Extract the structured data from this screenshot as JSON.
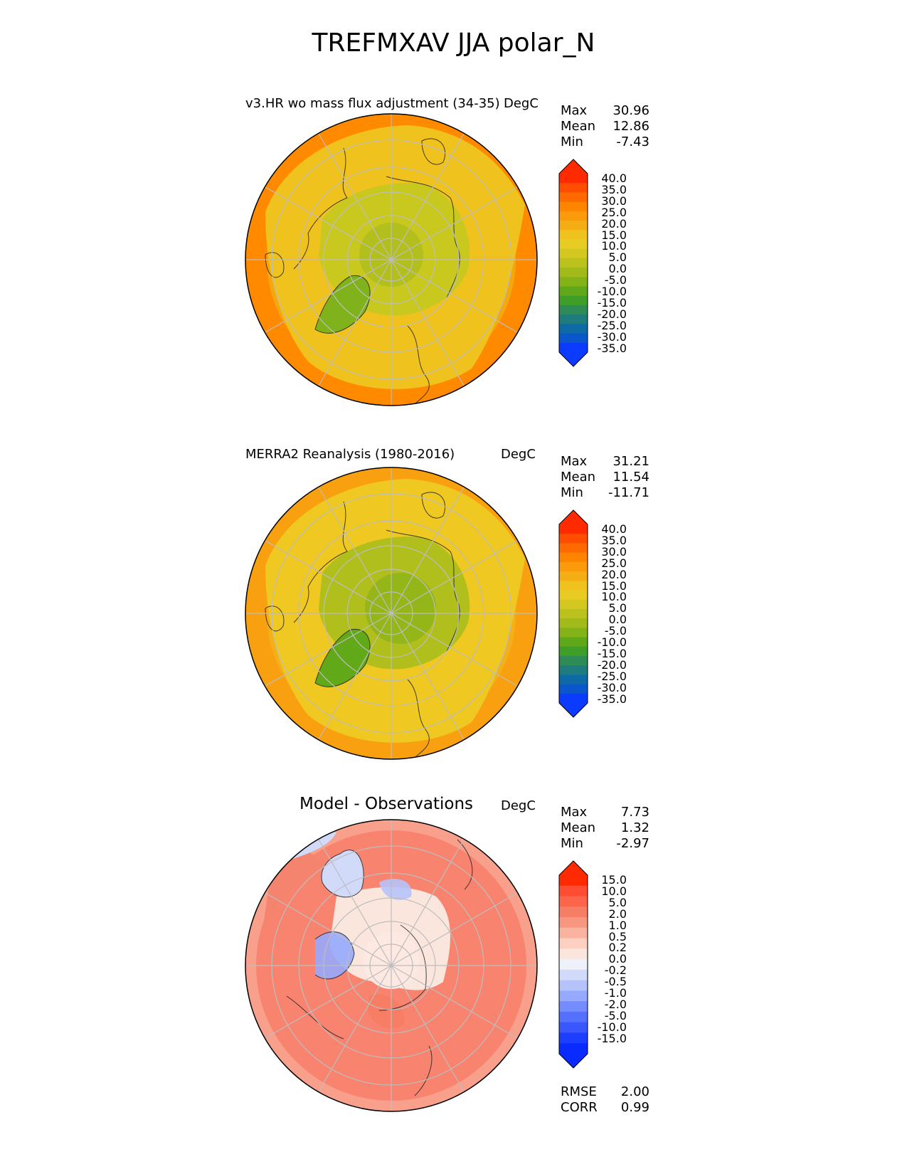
{
  "title": "TREFMXAV JJA polar_N",
  "panels": [
    {
      "title": "v3.HR wo mass flux adjustment (34-35)",
      "units": "DegC",
      "stats": [
        {
          "label": "Max",
          "value": "30.96"
        },
        {
          "label": "Mean",
          "value": "12.86"
        },
        {
          "label": "Min",
          "value": "-7.43"
        }
      ],
      "colorbar": {
        "ticks": [
          "40.0",
          "35.0",
          "30.0",
          "25.0",
          "20.0",
          "15.0",
          "10.0",
          "5.0",
          "0.0",
          "-5.0",
          "-10.0",
          "-15.0",
          "-20.0",
          "-25.0",
          "-30.0",
          "-35.0"
        ],
        "colors": [
          "#ff2a00",
          "#ff4d00",
          "#ff6a00",
          "#ff8400",
          "#fb9b0c",
          "#f5ad14",
          "#f0c21e",
          "#e8cc24",
          "#d3c721",
          "#bcc21d",
          "#a2bb1b",
          "#84b318",
          "#5ea81a",
          "#3e9e28",
          "#2f8b55",
          "#1f7c7c",
          "#0d6aa5",
          "#0a57cc",
          "#0b3bff"
        ],
        "over_color": "#ff2a00",
        "under_color": "#0b3bff"
      },
      "map_colors": {
        "ocean_far": "#ff8a00",
        "ocean_mid": "#f3a80f",
        "land_mid": "#f0c21e",
        "arctic": "#c9c81f",
        "pole": "#b2bf1c",
        "greenland": "#7fb21b"
      }
    },
    {
      "title": "MERRA2 Reanalysis (1980-2016)",
      "units": "DegC",
      "stats": [
        {
          "label": "Max",
          "value": "31.21"
        },
        {
          "label": "Mean",
          "value": "11.54"
        },
        {
          "label": "Min",
          "value": "-11.71"
        }
      ],
      "colorbar": {
        "ticks": [
          "40.0",
          "35.0",
          "30.0",
          "25.0",
          "20.0",
          "15.0",
          "10.0",
          "5.0",
          "0.0",
          "-5.0",
          "-10.0",
          "-15.0",
          "-20.0",
          "-25.0",
          "-30.0",
          "-35.0"
        ],
        "colors": [
          "#ff2a00",
          "#ff4d00",
          "#ff6a00",
          "#ff8400",
          "#fb9b0c",
          "#f5ad14",
          "#f0c21e",
          "#e8cc24",
          "#d3c721",
          "#bcc21d",
          "#a2bb1b",
          "#84b318",
          "#5ea81a",
          "#3e9e28",
          "#2f8b55",
          "#1f7c7c",
          "#0d6aa5",
          "#0a57cc",
          "#0b3bff"
        ],
        "over_color": "#ff2a00",
        "under_color": "#0b3bff"
      },
      "map_colors": {
        "ocean_far": "#f9a010",
        "ocean_mid": "#f3b01a",
        "land_mid": "#efc822",
        "arctic": "#b0bf1c",
        "pole": "#94b618",
        "greenland": "#62a919"
      }
    },
    {
      "title": "Model - Observations",
      "units": "DegC",
      "stats": [
        {
          "label": "Max",
          "value": "7.73"
        },
        {
          "label": "Mean",
          "value": "1.32"
        },
        {
          "label": "Min",
          "value": "-2.97"
        }
      ],
      "colorbar": {
        "ticks": [
          "15.0",
          "10.0",
          "5.0",
          "2.0",
          "1.0",
          "0.5",
          "0.2",
          "0.0",
          "-0.2",
          "-0.5",
          "-1.0",
          "-2.0",
          "-5.0",
          "-10.0",
          "-15.0"
        ],
        "colors": [
          "#ff2a00",
          "#ff4d33",
          "#fd654b",
          "#f87d65",
          "#f7977f",
          "#fab39f",
          "#fdd0c2",
          "#fbe6de",
          "#eef0fa",
          "#d2dafa",
          "#b6c3fb",
          "#96a9fc",
          "#748cfd",
          "#5570fd",
          "#3a57fe",
          "#1d3dff",
          "#0a2bff"
        ],
        "over_color": "#ff2a00",
        "under_color": "#0a2bff"
      },
      "map_colors": {
        "ocean_far": "#f9a08c",
        "ocean_mid": "#f88470",
        "land_mid": "#f4846e",
        "arctic": "#fbe6de",
        "pole": "#fde9e2",
        "greenland": "#d2dafa"
      },
      "metrics": [
        {
          "label": "RMSE",
          "value": "2.00"
        },
        {
          "label": "CORR",
          "value": "0.99"
        }
      ]
    }
  ]
}
